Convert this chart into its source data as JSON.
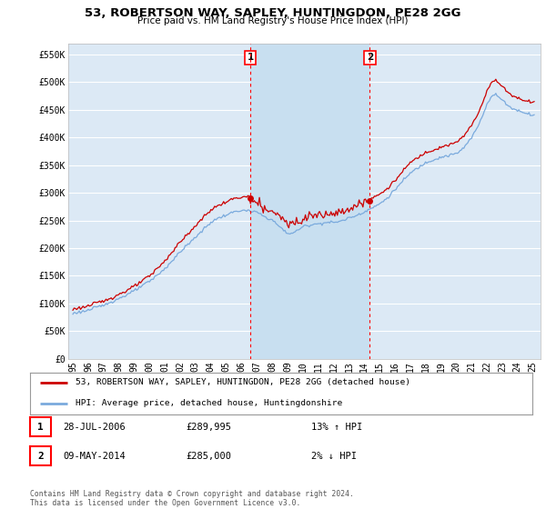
{
  "title": "53, ROBERTSON WAY, SAPLEY, HUNTINGDON, PE28 2GG",
  "subtitle": "Price paid vs. HM Land Registry's House Price Index (HPI)",
  "ylim": [
    0,
    570000
  ],
  "yticks": [
    0,
    50000,
    100000,
    150000,
    200000,
    250000,
    300000,
    350000,
    400000,
    450000,
    500000,
    550000
  ],
  "ytick_labels": [
    "£0",
    "£50K",
    "£100K",
    "£150K",
    "£200K",
    "£250K",
    "£300K",
    "£350K",
    "£400K",
    "£450K",
    "£500K",
    "£550K"
  ],
  "background_color": "#ffffff",
  "plot_bg_color": "#dce9f5",
  "shade_color": "#c8dff0",
  "grid_color": "#ffffff",
  "line1_color": "#cc0000",
  "line2_color": "#7aaadd",
  "annotation1_date": "28-JUL-2006",
  "annotation1_value": 289995,
  "annotation1_hpi": "13% ↑ HPI",
  "annotation2_date": "09-MAY-2014",
  "annotation2_value": 285000,
  "annotation2_hpi": "2% ↓ HPI",
  "legend1_text": "53, ROBERTSON WAY, SAPLEY, HUNTINGDON, PE28 2GG (detached house)",
  "legend2_text": "HPI: Average price, detached house, Huntingdonshire",
  "footer": "Contains HM Land Registry data © Crown copyright and database right 2024.\nThis data is licensed under the Open Government Licence v3.0.",
  "vline1_x": 2006.58,
  "vline2_x": 2014.36,
  "sale1_price": 289995,
  "sale2_price": 285000,
  "xlim_left": 1994.7,
  "xlim_right": 2025.5
}
